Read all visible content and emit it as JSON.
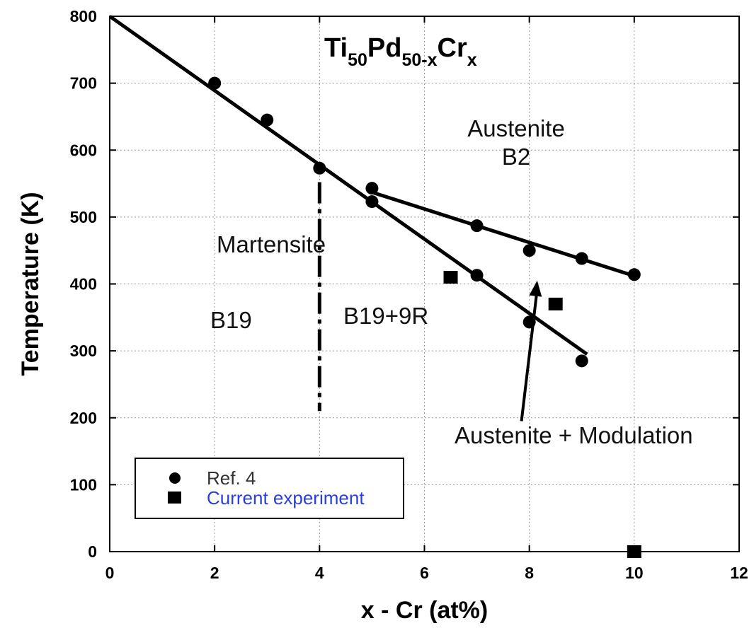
{
  "chart_data": {
    "type": "scatter",
    "xlabel": "x - Cr (at%)",
    "ylabel": "Temperature (K)",
    "xlim": [
      0,
      12
    ],
    "ylim": [
      0,
      800
    ],
    "xticks": [
      0,
      2,
      4,
      6,
      8,
      10,
      12
    ],
    "yticks": [
      0,
      100,
      200,
      300,
      400,
      500,
      600,
      700,
      800
    ],
    "grid": true,
    "title": {
      "base1": "Ti",
      "sub1": "50",
      "base2": "Pd",
      "sub2": "50-x",
      "base3": "Cr",
      "sub3": "x"
    },
    "series": [
      {
        "name": "Ref. 4",
        "marker": "circle",
        "points": [
          {
            "x": 2,
            "y": 700
          },
          {
            "x": 3,
            "y": 645
          },
          {
            "x": 4,
            "y": 573
          },
          {
            "x": 5,
            "y": 543
          },
          {
            "x": 5,
            "y": 523
          },
          {
            "x": 7,
            "y": 487
          },
          {
            "x": 7,
            "y": 413
          },
          {
            "x": 8,
            "y": 450
          },
          {
            "x": 8,
            "y": 343
          },
          {
            "x": 9,
            "y": 438
          },
          {
            "x": 9,
            "y": 285
          },
          {
            "x": 10,
            "y": 414
          }
        ]
      },
      {
        "name": "Current experiment",
        "marker": "square",
        "points": [
          {
            "x": 6.5,
            "y": 410
          },
          {
            "x": 8.5,
            "y": 370
          },
          {
            "x": 10,
            "y": 0
          }
        ]
      }
    ],
    "lines": [
      {
        "style": "solid",
        "from": {
          "x": 0,
          "y": 800
        },
        "to": {
          "x": 9.1,
          "y": 295
        }
      },
      {
        "style": "solid",
        "from": {
          "x": 5,
          "y": 537
        },
        "to": {
          "x": 10,
          "y": 412
        }
      },
      {
        "style": "dash-dot",
        "from": {
          "x": 4,
          "y": 552
        },
        "to": {
          "x": 4,
          "y": 210
        }
      }
    ],
    "region_labels": {
      "austenite": "Austenite",
      "b2": "B2",
      "martensite": "Martensite",
      "b19": "B19",
      "b19_9r": "B19+9R",
      "austenite_modulation": "Austenite + Modulation"
    },
    "annotation_arrow": {
      "from": {
        "x": 7.85,
        "y": 195
      },
      "to": {
        "x": 8.15,
        "y": 405
      }
    },
    "legend": {
      "position": "bottom-left",
      "entries": [
        "Ref. 4",
        "Current experiment"
      ],
      "colors": [
        "#333333",
        "#2a3fe0"
      ]
    },
    "colors": {
      "marks": "#000000",
      "grid": "#9a9a9a"
    }
  }
}
